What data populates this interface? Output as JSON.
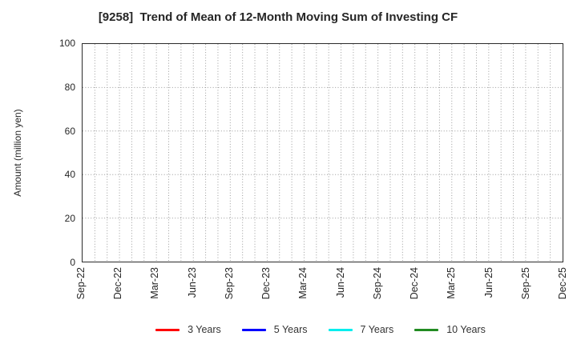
{
  "chart_data": {
    "type": "line",
    "title": "[9258]  Trend of Mean of 12-Month Moving Sum of Investing CF",
    "ylabel": "Amount (million yen)",
    "ylim": [
      0,
      100
    ],
    "yticks": [
      0,
      20,
      40,
      60,
      80,
      100
    ],
    "x_tick_labels": [
      "Sep-22",
      "Dec-22",
      "Mar-23",
      "Jun-23",
      "Sep-23",
      "Dec-23",
      "Mar-24",
      "Jun-24",
      "Sep-24",
      "Dec-24",
      "Mar-25",
      "Jun-25",
      "Sep-25",
      "Dec-25"
    ],
    "minor_x_divisions_per_label_interval": 3,
    "grid": "dotted",
    "grid_color": "#9a9a9a",
    "axis_color": "#2b2b2b",
    "text_color": "#262626",
    "legend_position": "bottom-center",
    "series": [
      {
        "name": "3 Years",
        "color": "#ff0000",
        "values": []
      },
      {
        "name": "5 Years",
        "color": "#0000ff",
        "values": []
      },
      {
        "name": "7 Years",
        "color": "#00eeee",
        "values": []
      },
      {
        "name": "10 Years",
        "color": "#228b22",
        "values": []
      }
    ]
  }
}
